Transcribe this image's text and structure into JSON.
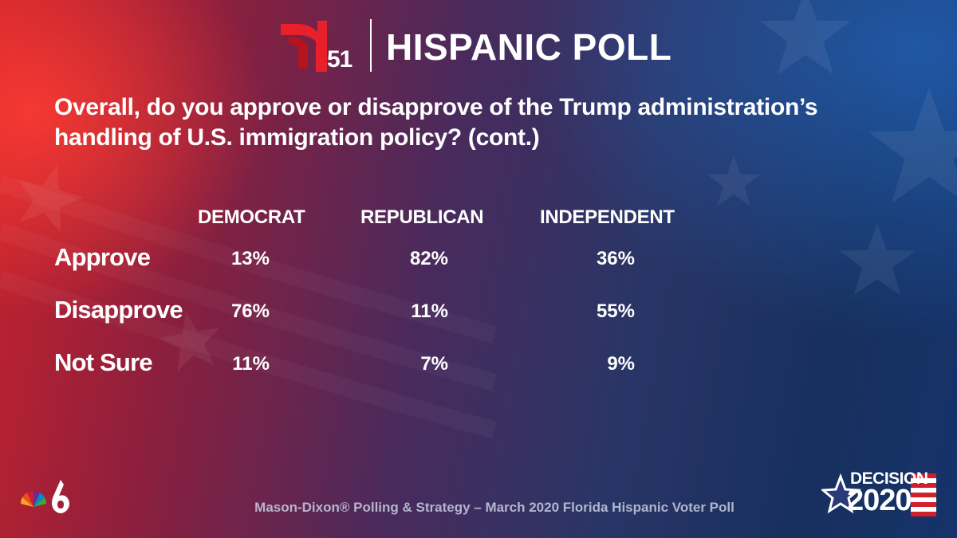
{
  "header": {
    "logo_number": "51",
    "title": "HISPANIC POLL"
  },
  "question": "Overall, do you approve or disapprove of the Trump administration’s handling of U.S. immigration policy? (cont.)",
  "table": {
    "columns": [
      "DEMOCRAT",
      "REPUBLICAN",
      "INDEPENDENT"
    ],
    "rows": [
      {
        "label": "Approve",
        "values": [
          "13%",
          "82%",
          "36%"
        ]
      },
      {
        "label": "Disapprove",
        "values": [
          "76%",
          "11%",
          "55%"
        ]
      },
      {
        "label": "Not Sure",
        "values": [
          "11%",
          "7%",
          "9%"
        ]
      }
    ]
  },
  "footer": {
    "source": "Mason-Dixon® Polling & Strategy – March 2020 Florida Hispanic Voter Poll",
    "decision_word": "DECISION",
    "decision_year": "2020"
  },
  "colors": {
    "telemundo_red": "#e8202a",
    "text": "#ffffff",
    "footer_text": "#c8cde1"
  }
}
